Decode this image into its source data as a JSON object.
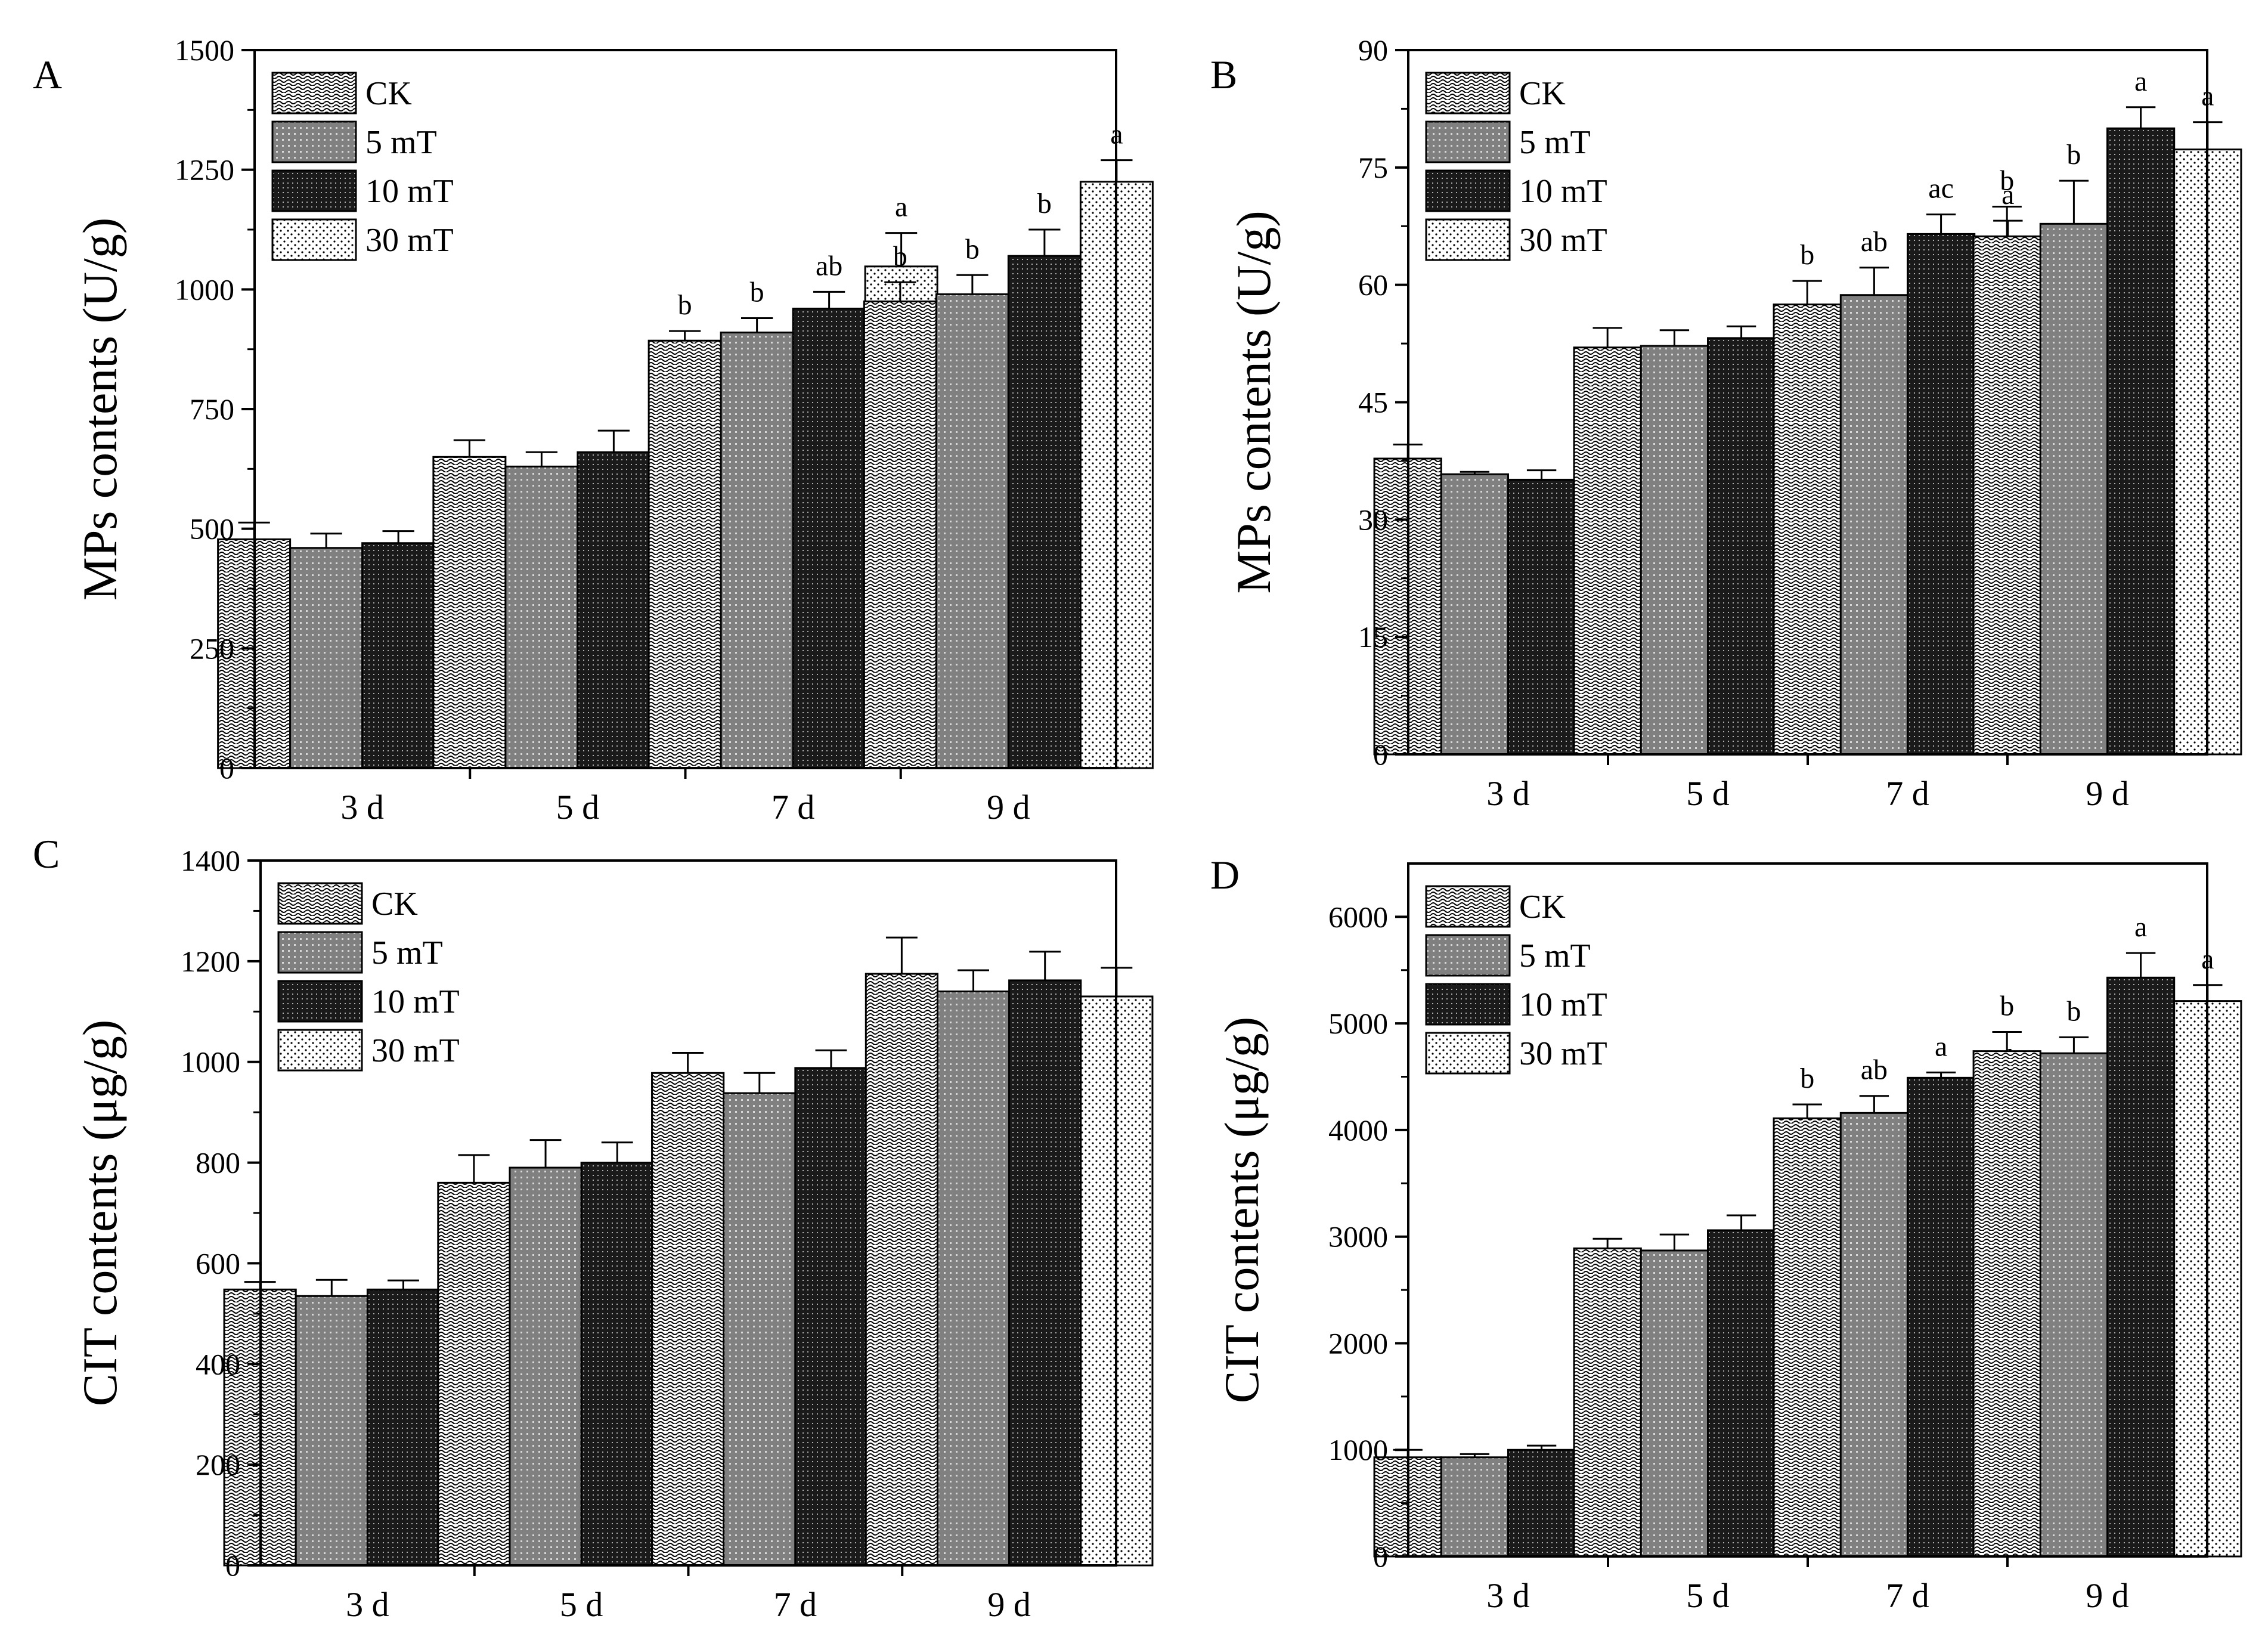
{
  "chart_data": [
    {
      "panel": "A",
      "type": "bar",
      "ylabel": "MPs contents (U/g)",
      "ylim": [
        0,
        1500
      ],
      "yticks": [
        0,
        250,
        500,
        750,
        1000,
        1250,
        1500
      ],
      "ytick_labels": [
        "0",
        "250",
        "500",
        "750",
        "1000",
        "1250",
        "1500"
      ],
      "categories": [
        "3 d",
        "5 d",
        "7 d",
        "9 d"
      ],
      "legend_position": "top-left",
      "series": [
        {
          "name": "CK",
          "pattern": "wave",
          "values": [
            478,
            650,
            893,
            975
          ],
          "errors": [
            35,
            35,
            20,
            40
          ],
          "sig": [
            "",
            "",
            "b",
            "b"
          ]
        },
        {
          "name": "5 mT",
          "pattern": "grid",
          "values": [
            460,
            630,
            910,
            990
          ],
          "errors": [
            30,
            30,
            30,
            40
          ],
          "sig": [
            "",
            "",
            "b",
            "b"
          ]
        },
        {
          "name": "10 mT",
          "pattern": "dark",
          "values": [
            470,
            660,
            960,
            1070
          ],
          "errors": [
            25,
            45,
            35,
            55
          ],
          "sig": [
            "",
            "",
            "ab",
            "b"
          ]
        },
        {
          "name": "30 mT",
          "pattern": "dots",
          "values": [
            488,
            700,
            1048,
            1225
          ],
          "errors": [
            25,
            50,
            70,
            45
          ],
          "sig": [
            "",
            "",
            "a",
            "a"
          ]
        }
      ]
    },
    {
      "panel": "B",
      "type": "bar",
      "ylabel": "MPs contents (U/g)",
      "ylim": [
        0,
        90
      ],
      "yticks": [
        0,
        15,
        30,
        45,
        60,
        75,
        90
      ],
      "ytick_labels": [
        "0",
        "15",
        "30",
        "45",
        "60",
        "75",
        "90"
      ],
      "categories": [
        "3 d",
        "5 d",
        "7 d",
        "9 d"
      ],
      "legend_position": "top-left",
      "series": [
        {
          "name": "CK",
          "pattern": "wave",
          "values": [
            37.8,
            52,
            57.5,
            66.2
          ],
          "errors": [
            1.8,
            2.5,
            3,
            3.8
          ],
          "sig": [
            "",
            "",
            "b",
            "b"
          ]
        },
        {
          "name": "5 mT",
          "pattern": "grid",
          "values": [
            35.8,
            52.2,
            58.7,
            67.8
          ],
          "errors": [
            0.3,
            2,
            3.5,
            5.5
          ],
          "sig": [
            "",
            "",
            "ab",
            "b"
          ]
        },
        {
          "name": "10 mT",
          "pattern": "dark",
          "values": [
            35.1,
            53.2,
            66.5,
            80
          ],
          "errors": [
            1.2,
            1.5,
            2.5,
            2.7
          ],
          "sig": [
            "",
            "",
            "ac",
            "a"
          ]
        },
        {
          "name": "30 mT",
          "pattern": "dots",
          "values": [
            36.6,
            53.3,
            65.7,
            77.3
          ],
          "errors": [
            2,
            2,
            2.5,
            3.5
          ],
          "sig": [
            "",
            "",
            "a",
            "a"
          ]
        }
      ]
    },
    {
      "panel": "C",
      "type": "bar",
      "ylabel": "CIT contents (μg/g)",
      "ylim": [
        0,
        1400
      ],
      "yticks": [
        0,
        200,
        400,
        600,
        800,
        1000,
        1200,
        1400
      ],
      "ytick_labels": [
        "0",
        "200",
        "400",
        "600",
        "800",
        "1000",
        "1200",
        "1400"
      ],
      "categories": [
        "3 d",
        "5 d",
        "7 d",
        "9 d"
      ],
      "legend_position": "top-left",
      "series": [
        {
          "name": "CK",
          "pattern": "wave",
          "values": [
            548,
            760,
            978,
            1175
          ],
          "errors": [
            15,
            55,
            40,
            72
          ],
          "sig": [
            "",
            "",
            "",
            ""
          ]
        },
        {
          "name": "5 mT",
          "pattern": "grid",
          "values": [
            535,
            790,
            938,
            1140
          ],
          "errors": [
            32,
            55,
            40,
            42
          ],
          "sig": [
            "",
            "",
            "",
            ""
          ]
        },
        {
          "name": "10 mT",
          "pattern": "dark",
          "values": [
            548,
            800,
            988,
            1162
          ],
          "errors": [
            18,
            40,
            35,
            57
          ],
          "sig": [
            "",
            "",
            "",
            ""
          ]
        },
        {
          "name": "30 mT",
          "pattern": "dots",
          "values": [
            572,
            742,
            980,
            1130
          ],
          "errors": [
            12,
            50,
            50,
            57
          ],
          "sig": [
            "",
            "",
            "",
            ""
          ]
        }
      ]
    },
    {
      "panel": "D",
      "type": "bar",
      "ylabel": "CIT contents (μg/g)",
      "ylim": [
        0,
        6500
      ],
      "yticks": [
        0,
        1000,
        2000,
        3000,
        4000,
        5000,
        6000
      ],
      "ytick_labels": [
        "0",
        "1000",
        "2000",
        "3000",
        "4000",
        "5000",
        "6000"
      ],
      "categories": [
        "3 d",
        "5 d",
        "7 d",
        "9 d"
      ],
      "legend_position": "top-left",
      "series": [
        {
          "name": "CK",
          "pattern": "wave",
          "values": [
            930,
            2890,
            4110,
            4740
          ],
          "errors": [
            70,
            90,
            130,
            180
          ],
          "sig": [
            "",
            "",
            "b",
            "b"
          ]
        },
        {
          "name": "5 mT",
          "pattern": "grid",
          "values": [
            930,
            2870,
            4160,
            4720
          ],
          "errors": [
            30,
            150,
            160,
            150
          ],
          "sig": [
            "",
            "",
            "ab",
            "b"
          ]
        },
        {
          "name": "10 mT",
          "pattern": "dark",
          "values": [
            1000,
            3060,
            4490,
            5430
          ],
          "errors": [
            40,
            140,
            50,
            230
          ],
          "sig": [
            "",
            "",
            "a",
            "a"
          ]
        },
        {
          "name": "30 mT",
          "pattern": "dots",
          "values": [
            960,
            3020,
            4340,
            5210
          ],
          "errors": [
            70,
            130,
            80,
            150
          ],
          "sig": [
            "",
            "",
            "ab",
            "a"
          ]
        }
      ]
    }
  ]
}
